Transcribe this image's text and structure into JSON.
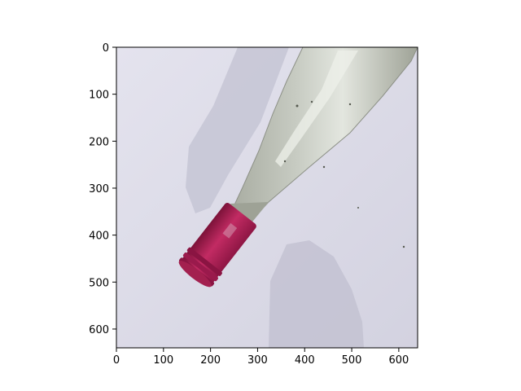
{
  "figure": {
    "background": "#ffffff",
    "axes_color": "#000000"
  },
  "image_axes": {
    "x_ticks": [
      {
        "value": 0,
        "label": "0"
      },
      {
        "value": 100,
        "label": "100"
      },
      {
        "value": 200,
        "label": "200"
      },
      {
        "value": 300,
        "label": "300"
      },
      {
        "value": 400,
        "label": "400"
      },
      {
        "value": 500,
        "label": "500"
      },
      {
        "value": 600,
        "label": "600"
      }
    ],
    "y_ticks": [
      {
        "value": 0,
        "label": "0"
      },
      {
        "value": 100,
        "label": "100"
      },
      {
        "value": 200,
        "label": "200"
      },
      {
        "value": 300,
        "label": "300"
      },
      {
        "value": 400,
        "label": "400"
      },
      {
        "value": 500,
        "label": "500"
      },
      {
        "value": 600,
        "label": "600"
      }
    ],
    "xlim": [
      0,
      640
    ],
    "ylim": [
      640,
      0
    ]
  },
  "photo": {
    "subject": "glass-bottle-with-red-screw-cap",
    "colors": {
      "backdrop": "#dcdbe8",
      "shadow": "#c4c3d3",
      "glass": "#b9bcb2",
      "glass_highlight": "#e6e8e2",
      "cap": "#b3265a",
      "cap_dark": "#7c1239"
    }
  }
}
